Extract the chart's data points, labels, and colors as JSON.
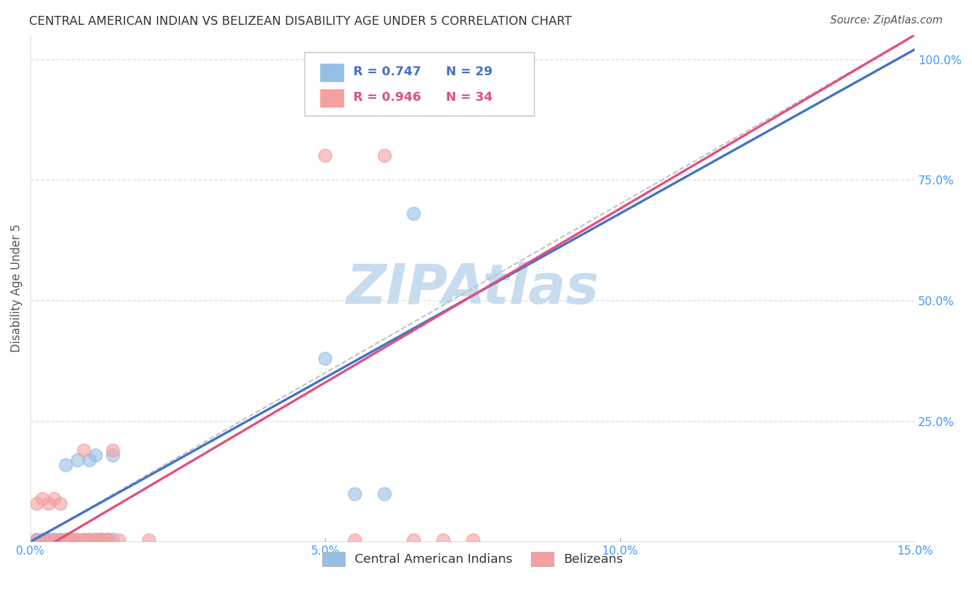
{
  "title": "CENTRAL AMERICAN INDIAN VS BELIZEAN DISABILITY AGE UNDER 5 CORRELATION CHART",
  "source": "Source: ZipAtlas.com",
  "ylabel_label": "Disability Age Under 5",
  "xmin": 0.0,
  "xmax": 0.15,
  "ymin": 0.0,
  "ymax": 1.05,
  "xtick_vals": [
    0.0,
    0.05,
    0.1,
    0.15
  ],
  "xtick_labels": [
    "0.0%",
    "5.0%",
    "10.0%",
    "15.0%"
  ],
  "ytick_vals": [
    0.0,
    0.25,
    0.5,
    0.75,
    1.0
  ],
  "ytick_labels": [
    "",
    "25.0%",
    "50.0%",
    "75.0%",
    "100.0%"
  ],
  "blue_color": "#96BEE6",
  "pink_color": "#F4A0A0",
  "blue_line_color": "#4472C4",
  "pink_line_color": "#E05080",
  "dashed_line_color": "#C0C0C0",
  "grid_color": "#E0E0E0",
  "tick_color": "#4499FF",
  "watermark_color": "#C8DCEF",
  "blue_reg_slope": 6.8,
  "blue_reg_intercept": 0.0,
  "pink_reg_slope": 7.2,
  "pink_reg_intercept": -0.03,
  "blue_scatter_x": [
    0.001,
    0.001,
    0.002,
    0.002,
    0.003,
    0.003,
    0.004,
    0.004,
    0.005,
    0.005,
    0.006,
    0.006,
    0.007,
    0.008,
    0.008,
    0.009,
    0.009,
    0.01,
    0.01,
    0.011,
    0.011,
    0.012,
    0.013,
    0.014,
    0.014,
    0.05,
    0.055,
    0.06,
    0.065
  ],
  "blue_scatter_y": [
    0.003,
    0.005,
    0.003,
    0.005,
    0.003,
    0.005,
    0.003,
    0.005,
    0.003,
    0.005,
    0.003,
    0.16,
    0.003,
    0.003,
    0.17,
    0.003,
    0.005,
    0.17,
    0.003,
    0.005,
    0.18,
    0.005,
    0.005,
    0.005,
    0.18,
    0.38,
    0.1,
    0.1,
    0.68
  ],
  "pink_scatter_x": [
    0.001,
    0.001,
    0.002,
    0.002,
    0.003,
    0.003,
    0.004,
    0.004,
    0.005,
    0.005,
    0.006,
    0.006,
    0.007,
    0.007,
    0.008,
    0.008,
    0.009,
    0.009,
    0.01,
    0.01,
    0.011,
    0.012,
    0.012,
    0.013,
    0.013,
    0.014,
    0.015,
    0.02,
    0.05,
    0.055,
    0.06,
    0.065,
    0.07,
    0.075
  ],
  "pink_scatter_y": [
    0.003,
    0.08,
    0.003,
    0.09,
    0.003,
    0.08,
    0.003,
    0.09,
    0.003,
    0.08,
    0.003,
    0.005,
    0.003,
    0.005,
    0.003,
    0.005,
    0.19,
    0.003,
    0.003,
    0.005,
    0.003,
    0.003,
    0.005,
    0.003,
    0.005,
    0.19,
    0.003,
    0.003,
    0.8,
    0.003,
    0.8,
    0.003,
    0.003,
    0.003
  ],
  "legend_blue": "Central American Indians",
  "legend_pink": "Belizeans",
  "legend_r1": "R = 0.747",
  "legend_n1": "N = 29",
  "legend_r2": "R = 0.946",
  "legend_n2": "N = 34"
}
